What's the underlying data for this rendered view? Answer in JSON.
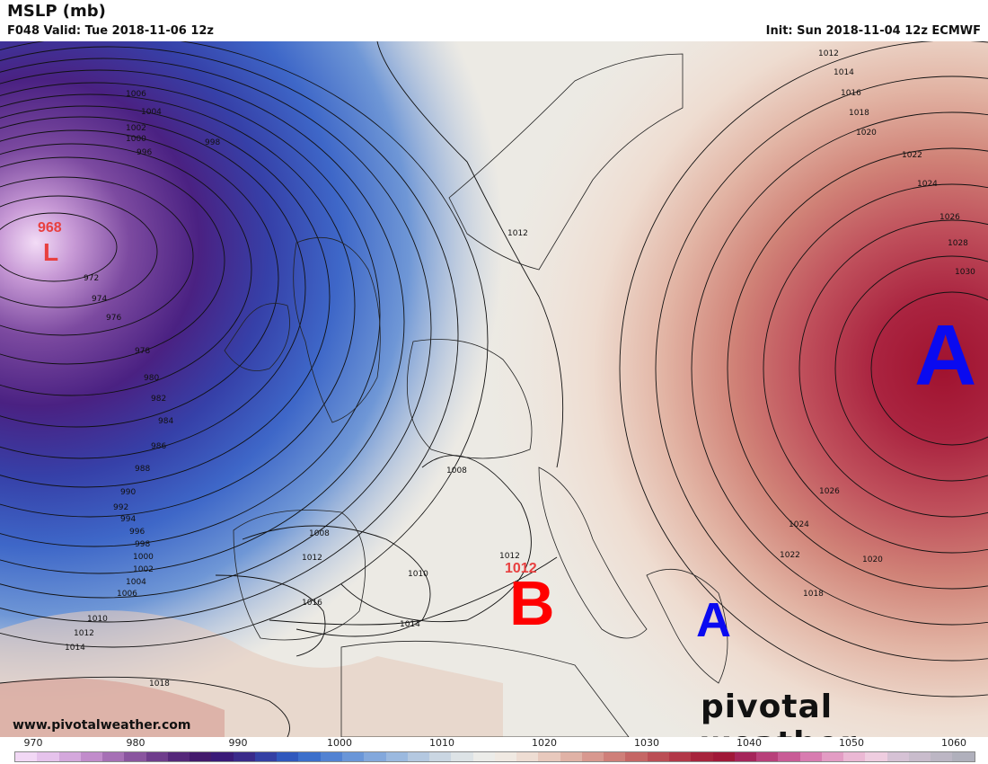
{
  "header": {
    "title": "MSLP (mb)",
    "valid": "F048 Valid: Tue 2018-11-06 12z",
    "init": "Init: Sun 2018-11-04 12z ECMWF"
  },
  "map": {
    "low": {
      "letter": "L",
      "value": "968"
    },
    "high_east": {
      "letter": "A"
    },
    "high_greece": {
      "letter": "A"
    },
    "low_med": {
      "letter": "B",
      "value": "1012"
    },
    "isobar_labels": [
      "1006",
      "1004",
      "1002",
      "1000",
      "996",
      "998",
      "972",
      "974",
      "976",
      "978",
      "980",
      "982",
      "984",
      "986",
      "988",
      "990",
      "992",
      "994",
      "996",
      "998",
      "1000",
      "1002",
      "1004",
      "1006",
      "1010",
      "1012",
      "1014",
      "1018",
      "1016",
      "1012",
      "1008",
      "1010",
      "1014",
      "1008",
      "1012",
      "1012",
      "1012",
      "1014",
      "1016",
      "1018",
      "1020",
      "1022",
      "1024",
      "1026",
      "1028",
      "1030",
      "1026",
      "1024",
      "1022",
      "1020",
      "1018"
    ]
  },
  "footer": {
    "website": "www.pivotalweather.com",
    "brand": "pivotal weather"
  },
  "colorbar": {
    "labels": [
      "970",
      "980",
      "990",
      "1000",
      "1010",
      "1020",
      "1030",
      "1040",
      "1050",
      "1060"
    ],
    "colors": [
      "#f2d8f5",
      "#e6c3ec",
      "#d4a8dc",
      "#c18ccb",
      "#a670b5",
      "#8a559f",
      "#6f3d8c",
      "#55287a",
      "#431a6c",
      "#3a1a78",
      "#3a2a8a",
      "#3440a4",
      "#3058bd",
      "#3c6fcb",
      "#5282d2",
      "#6a96d8",
      "#83a8dc",
      "#9bb9df",
      "#b4c8e0",
      "#cad6e2",
      "#dde3e6",
      "#ecece9",
      "#f0e9e2",
      "#eeddd3",
      "#e8c9bd",
      "#e0b2a6",
      "#d8988f",
      "#cf7f79",
      "#c56665",
      "#bb4e55",
      "#b23848",
      "#a7243d",
      "#a01838",
      "#a5255a",
      "#b8407a",
      "#c95c96",
      "#d87cb0",
      "#e39cc4",
      "#ebb8d4",
      "#efcde0",
      "#d6c2d5",
      "#c9bccc",
      "#bcb6c4",
      "#b0b0bc"
    ]
  }
}
